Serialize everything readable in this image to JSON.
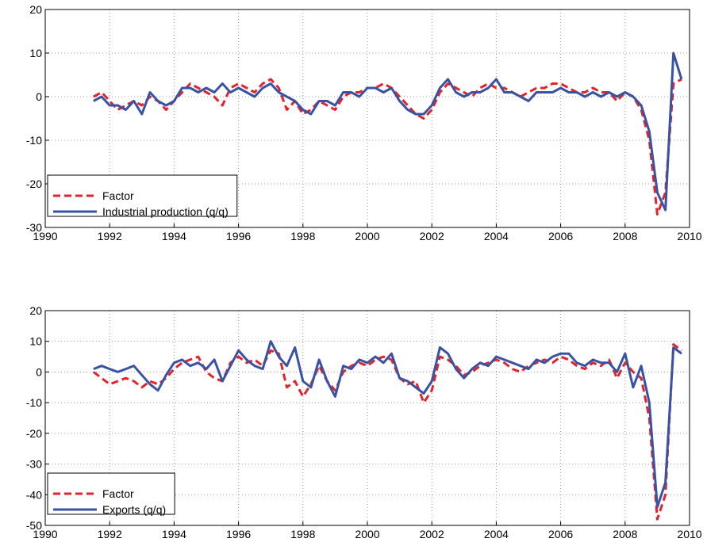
{
  "chart_data": [
    {
      "type": "line",
      "grid": true,
      "legend": "lower left",
      "xlim": [
        1990,
        2010
      ],
      "xticks": [
        1990,
        1992,
        1994,
        1996,
        1998,
        2000,
        2002,
        2004,
        2006,
        2008,
        2010
      ],
      "ylim": [
        -30,
        20
      ],
      "yticks": [
        -30,
        -20,
        -10,
        0,
        10,
        20
      ],
      "x": [
        1991.5,
        1991.75,
        1992,
        1992.25,
        1992.5,
        1992.75,
        1993,
        1993.25,
        1993.5,
        1993.75,
        1994,
        1994.25,
        1994.5,
        1994.75,
        1995,
        1995.25,
        1995.5,
        1995.75,
        1996,
        1996.25,
        1996.5,
        1996.75,
        1997,
        1997.25,
        1997.5,
        1997.75,
        1998,
        1998.25,
        1998.5,
        1998.75,
        1999,
        1999.25,
        1999.5,
        1999.75,
        2000,
        2000.25,
        2000.5,
        2000.75,
        2001,
        2001.25,
        2001.5,
        2001.75,
        2002,
        2002.25,
        2002.5,
        2002.75,
        2003,
        2003.25,
        2003.5,
        2003.75,
        2004,
        2004.25,
        2004.5,
        2004.75,
        2005,
        2005.25,
        2005.5,
        2005.75,
        2006,
        2006.25,
        2006.5,
        2006.75,
        2007,
        2007.25,
        2007.5,
        2007.75,
        2008,
        2008.25,
        2008.5,
        2008.75,
        2009,
        2009.25,
        2009.5,
        2009.75
      ],
      "series": [
        {
          "name": "Factor",
          "color": "#e3232b",
          "linestyle": "dashed",
          "values": [
            0,
            1,
            -1,
            -3,
            -2,
            -1,
            -2,
            0,
            -1,
            -3,
            -1,
            1,
            3,
            2,
            1,
            0,
            -2,
            2,
            3,
            2,
            1,
            3,
            4,
            2,
            -3,
            -1,
            -4,
            -3,
            -1,
            -2,
            -3,
            0,
            1,
            1,
            2,
            2,
            3,
            2,
            0,
            -2,
            -4,
            -5,
            -3,
            1,
            3,
            2,
            1,
            0,
            2,
            3,
            2,
            2,
            1,
            0,
            1,
            2,
            2,
            3,
            3,
            2,
            1,
            1,
            2,
            1,
            1,
            -1,
            1,
            0,
            -3,
            -10,
            -27,
            -22,
            3,
            4
          ]
        },
        {
          "name": "Industrial production (q/q)",
          "color": "#3953a4",
          "linestyle": "solid",
          "values": [
            -1,
            0,
            -2,
            -2,
            -3,
            -1,
            -4,
            1,
            -1,
            -2,
            -1,
            2,
            2,
            1,
            2,
            1,
            3,
            1,
            2,
            1,
            0,
            2,
            3,
            1,
            0,
            -1,
            -3,
            -4,
            -1,
            -1,
            -2,
            1,
            1,
            0,
            2,
            2,
            1,
            2,
            -1,
            -3,
            -4,
            -4,
            -2,
            2,
            4,
            1,
            0,
            1,
            1,
            2,
            4,
            1,
            1,
            0,
            -1,
            1,
            1,
            1,
            2,
            1,
            1,
            0,
            1,
            0,
            1,
            0,
            1,
            0,
            -2,
            -8,
            -22,
            -26,
            10,
            4
          ]
        }
      ]
    },
    {
      "type": "line",
      "grid": true,
      "legend": "lower left",
      "xlim": [
        1990,
        2010
      ],
      "xticks": [
        1990,
        1992,
        1994,
        1996,
        1998,
        2000,
        2002,
        2004,
        2006,
        2008,
        2010
      ],
      "ylim": [
        -50,
        20
      ],
      "yticks": [
        -50,
        -40,
        -30,
        -20,
        -10,
        0,
        10,
        20
      ],
      "x": [
        1991.5,
        1991.75,
        1992,
        1992.25,
        1992.5,
        1992.75,
        1993,
        1993.25,
        1993.5,
        1993.75,
        1994,
        1994.25,
        1994.5,
        1994.75,
        1995,
        1995.25,
        1995.5,
        1995.75,
        1996,
        1996.25,
        1996.5,
        1996.75,
        1997,
        1997.25,
        1997.5,
        1997.75,
        1998,
        1998.25,
        1998.5,
        1998.75,
        1999,
        1999.25,
        1999.5,
        1999.75,
        2000,
        2000.25,
        2000.5,
        2000.75,
        2001,
        2001.25,
        2001.5,
        2001.75,
        2002,
        2002.25,
        2002.5,
        2002.75,
        2003,
        2003.25,
        2003.5,
        2003.75,
        2004,
        2004.25,
        2004.5,
        2004.75,
        2005,
        2005.25,
        2005.5,
        2005.75,
        2006,
        2006.25,
        2006.5,
        2006.75,
        2007,
        2007.25,
        2007.5,
        2007.75,
        2008,
        2008.25,
        2008.5,
        2008.75,
        2009,
        2009.25,
        2009.5,
        2009.75
      ],
      "series": [
        {
          "name": "Factor",
          "color": "#e3232b",
          "linestyle": "dashed",
          "values": [
            0,
            -2,
            -4,
            -3,
            -2,
            -3,
            -5,
            -3,
            -4,
            -2,
            1,
            3,
            4,
            5,
            0,
            -2,
            -3,
            3,
            5,
            3,
            4,
            2,
            7,
            6,
            -5,
            -3,
            -8,
            -4,
            2,
            -3,
            -6,
            0,
            2,
            3,
            2,
            4,
            5,
            4,
            -2,
            -4,
            -3,
            -10,
            -6,
            5,
            4,
            2,
            -1,
            0,
            2,
            3,
            4,
            3,
            1,
            0,
            2,
            3,
            4,
            3,
            5,
            4,
            2,
            1,
            3,
            2,
            4,
            -2,
            3,
            0,
            -2,
            -15,
            -48,
            -40,
            9,
            7
          ]
        },
        {
          "name": "Exports (q/q)",
          "color": "#3953a4",
          "linestyle": "solid",
          "values": [
            1,
            2,
            1,
            0,
            1,
            2,
            -1,
            -4,
            -6,
            -1,
            3,
            4,
            2,
            3,
            1,
            4,
            -3,
            2,
            7,
            4,
            2,
            1,
            10,
            5,
            2,
            8,
            -3,
            -5,
            4,
            -3,
            -8,
            2,
            1,
            4,
            3,
            5,
            3,
            6,
            -2,
            -3,
            -5,
            -7,
            -3,
            8,
            6,
            1,
            -2,
            1,
            3,
            2,
            5,
            4,
            3,
            2,
            1,
            4,
            3,
            5,
            6,
            6,
            3,
            2,
            4,
            3,
            3,
            0,
            6,
            -5,
            2,
            -10,
            -44,
            -36,
            8,
            6
          ]
        }
      ]
    }
  ]
}
